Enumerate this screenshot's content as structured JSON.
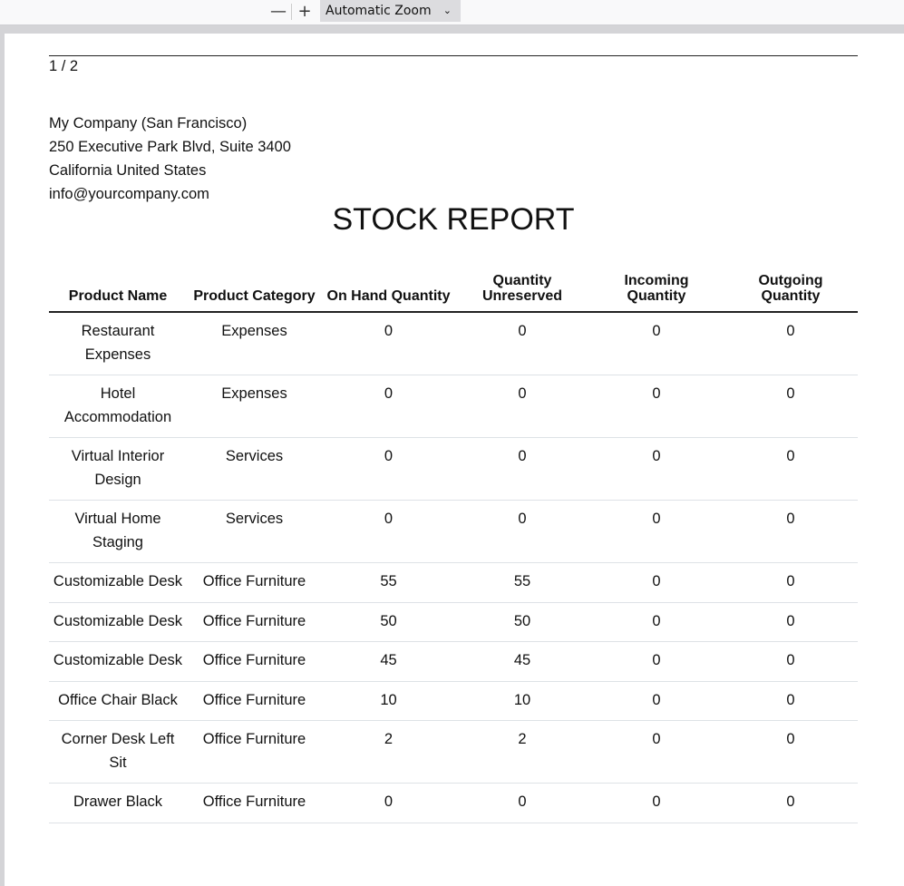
{
  "toolbar": {
    "zoom_out": "—",
    "zoom_in": "+",
    "zoom_value": "Automatic Zoom",
    "dropdown_icon": "chevron-down-icon"
  },
  "page_indicator": "1 / 2",
  "company": {
    "name": "My Company (San Francisco)",
    "street": "250 Executive Park Blvd, Suite 3400",
    "region": "California United States",
    "email": "info@yourcompany.com"
  },
  "report_title": "STOCK REPORT",
  "table": {
    "headers": [
      "Product Name",
      "Product Category",
      "On Hand Quantity",
      "Quantity Unreserved",
      "Incoming Quantity",
      "Outgoing Quantity"
    ],
    "rows": [
      [
        "Restaurant Expenses",
        "Expenses",
        "0",
        "0",
        "0",
        "0"
      ],
      [
        "Hotel Accommodation",
        "Expenses",
        "0",
        "0",
        "0",
        "0"
      ],
      [
        "Virtual Interior Design",
        "Services",
        "0",
        "0",
        "0",
        "0"
      ],
      [
        "Virtual Home Staging",
        "Services",
        "0",
        "0",
        "0",
        "0"
      ],
      [
        "Customizable Desk",
        "Office Furniture",
        "55",
        "55",
        "0",
        "0"
      ],
      [
        "Customizable Desk",
        "Office Furniture",
        "50",
        "50",
        "0",
        "0"
      ],
      [
        "Customizable Desk",
        "Office Furniture",
        "45",
        "45",
        "0",
        "0"
      ],
      [
        "Office Chair Black",
        "Office Furniture",
        "10",
        "10",
        "0",
        "0"
      ],
      [
        "Corner Desk Left Sit",
        "Office Furniture",
        "2",
        "2",
        "0",
        "0"
      ],
      [
        "Drawer Black",
        "Office Furniture",
        "0",
        "0",
        "0",
        "0"
      ]
    ]
  }
}
